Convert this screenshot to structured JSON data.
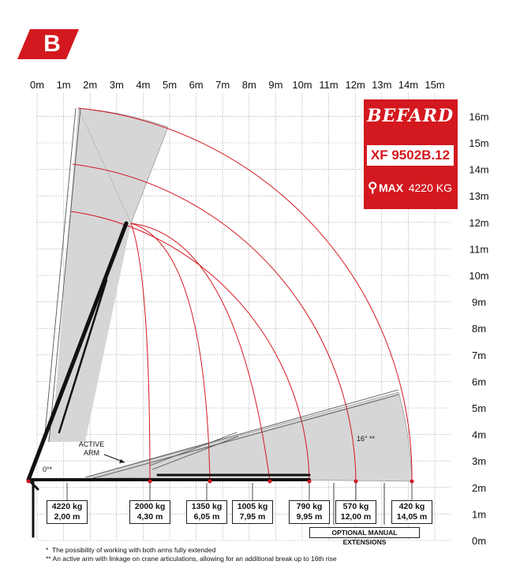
{
  "badge": {
    "letter": "B"
  },
  "brand": {
    "name": "BEFARD",
    "model": "XF 9502B.12",
    "max_label": "MAX",
    "max_value": "4220 KG"
  },
  "axes": {
    "x_ticks": [
      "0m",
      "1m",
      "2m",
      "3m",
      "4m",
      "5m",
      "6m",
      "7m",
      "8m",
      "9m",
      "10m",
      "11m",
      "12m",
      "13m",
      "14m",
      "15m"
    ],
    "y_ticks": [
      "16m",
      "15m",
      "14m",
      "13m",
      "12m",
      "11m",
      "10m",
      "9m",
      "8m",
      "7m",
      "6m",
      "5m",
      "4m",
      "3m",
      "2m",
      "1m",
      "0m"
    ]
  },
  "annotations": {
    "active_arm_line1": "ACTIVE",
    "active_arm_line2": "ARM",
    "zero_angle": "0°*",
    "sixteen_angle": "16° **"
  },
  "load_points": [
    {
      "kg": "4220 kg",
      "m": "2,00 m"
    },
    {
      "kg": "2000 kg",
      "m": "4,30 m"
    },
    {
      "kg": "1350 kg",
      "m": "6,05 m"
    },
    {
      "kg": "1005 kg",
      "m": "7,95 m"
    },
    {
      "kg": "790 kg",
      "m": "9,95 m"
    },
    {
      "kg": "570 kg",
      "m": "12,00 m"
    },
    {
      "kg": "420 kg",
      "m": "14,05 m"
    }
  ],
  "extensions_label": "OPTIONAL MANUAL EXTENSIONS",
  "footnotes": [
    {
      "mark": "*",
      "text": "The possibility of working with both arms fully extended"
    },
    {
      "mark": "**",
      "text": "An active arm with linkage on crane articulations, allowing for an additional break up to 16th rise"
    }
  ],
  "colors": {
    "red": "#d4181f",
    "grid": "#9a9a9a",
    "fill": "#d4d4d4",
    "boom": "#111111"
  }
}
